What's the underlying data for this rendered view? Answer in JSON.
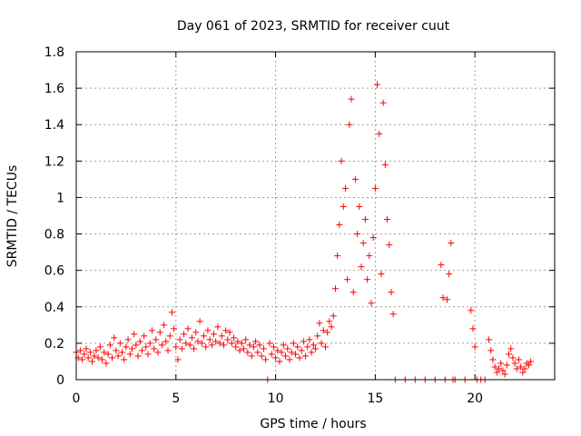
{
  "chart_data": {
    "type": "scatter",
    "title": "Day 061 of 2023, SRMTID for receiver cuut",
    "xlabel": "GPS time / hours",
    "ylabel": "SRMTID / TECUs",
    "xlim": [
      0,
      24
    ],
    "ylim": [
      0,
      1.8
    ],
    "xticks": [
      0,
      5,
      10,
      15,
      20
    ],
    "xtick_labels": [
      "0",
      "5",
      "10",
      "15",
      "20"
    ],
    "yticks": [
      0,
      0.2,
      0.4,
      0.6,
      0.8,
      1,
      1.2,
      1.4,
      1.6,
      1.8
    ],
    "ytick_labels": [
      "0",
      "0.2",
      "0.4",
      "0.6",
      "0.8",
      "1",
      "1.2",
      "1.4",
      "1.6",
      "1.8"
    ],
    "grid": true,
    "marker": "+",
    "color": "#ff0000",
    "series": [
      {
        "name": "SRMTID",
        "points": [
          [
            0.0,
            0.15
          ],
          [
            0.1,
            0.12
          ],
          [
            0.2,
            0.16
          ],
          [
            0.3,
            0.11
          ],
          [
            0.4,
            0.14
          ],
          [
            0.5,
            0.17
          ],
          [
            0.6,
            0.12
          ],
          [
            0.7,
            0.15
          ],
          [
            0.8,
            0.1
          ],
          [
            0.9,
            0.13
          ],
          [
            1.0,
            0.16
          ],
          [
            1.1,
            0.12
          ],
          [
            1.2,
            0.18
          ],
          [
            1.3,
            0.11
          ],
          [
            1.4,
            0.15
          ],
          [
            1.5,
            0.09
          ],
          [
            1.6,
            0.14
          ],
          [
            1.7,
            0.19
          ],
          [
            1.8,
            0.12
          ],
          [
            1.9,
            0.23
          ],
          [
            2.0,
            0.16
          ],
          [
            2.1,
            0.13
          ],
          [
            2.2,
            0.2
          ],
          [
            2.3,
            0.15
          ],
          [
            2.4,
            0.11
          ],
          [
            2.5,
            0.18
          ],
          [
            2.6,
            0.22
          ],
          [
            2.7,
            0.14
          ],
          [
            2.8,
            0.17
          ],
          [
            2.9,
            0.25
          ],
          [
            3.0,
            0.19
          ],
          [
            3.1,
            0.13
          ],
          [
            3.2,
            0.21
          ],
          [
            3.3,
            0.16
          ],
          [
            3.4,
            0.24
          ],
          [
            3.5,
            0.18
          ],
          [
            3.6,
            0.14
          ],
          [
            3.7,
            0.2
          ],
          [
            3.8,
            0.27
          ],
          [
            3.9,
            0.17
          ],
          [
            4.0,
            0.22
          ],
          [
            4.1,
            0.15
          ],
          [
            4.2,
            0.26
          ],
          [
            4.3,
            0.19
          ],
          [
            4.4,
            0.3
          ],
          [
            4.5,
            0.21
          ],
          [
            4.6,
            0.16
          ],
          [
            4.7,
            0.24
          ],
          [
            4.8,
            0.37
          ],
          [
            4.9,
            0.28
          ],
          [
            5.0,
            0.18
          ],
          [
            5.1,
            0.11
          ],
          [
            5.2,
            0.22
          ],
          [
            5.3,
            0.17
          ],
          [
            5.4,
            0.25
          ],
          [
            5.5,
            0.2
          ],
          [
            5.6,
            0.28
          ],
          [
            5.7,
            0.19
          ],
          [
            5.8,
            0.23
          ],
          [
            5.9,
            0.17
          ],
          [
            6.0,
            0.26
          ],
          [
            6.1,
            0.21
          ],
          [
            6.2,
            0.32
          ],
          [
            6.3,
            0.2
          ],
          [
            6.4,
            0.24
          ],
          [
            6.5,
            0.18
          ],
          [
            6.6,
            0.27
          ],
          [
            6.7,
            0.22
          ],
          [
            6.8,
            0.19
          ],
          [
            6.9,
            0.25
          ],
          [
            7.0,
            0.21
          ],
          [
            7.1,
            0.29
          ],
          [
            7.2,
            0.2
          ],
          [
            7.3,
            0.24
          ],
          [
            7.4,
            0.19
          ],
          [
            7.5,
            0.27
          ],
          [
            7.6,
            0.22
          ],
          [
            7.7,
            0.26
          ],
          [
            7.8,
            0.2
          ],
          [
            7.9,
            0.23
          ],
          [
            8.0,
            0.18
          ],
          [
            8.1,
            0.21
          ],
          [
            8.2,
            0.16
          ],
          [
            8.3,
            0.2
          ],
          [
            8.4,
            0.17
          ],
          [
            8.5,
            0.22
          ],
          [
            8.6,
            0.15
          ],
          [
            8.7,
            0.19
          ],
          [
            8.8,
            0.13
          ],
          [
            8.9,
            0.18
          ],
          [
            9.0,
            0.21
          ],
          [
            9.1,
            0.15
          ],
          [
            9.2,
            0.19
          ],
          [
            9.3,
            0.13
          ],
          [
            9.4,
            0.17
          ],
          [
            9.5,
            0.11
          ],
          [
            9.6,
            0.0
          ],
          [
            9.7,
            0.2
          ],
          [
            9.8,
            0.14
          ],
          [
            9.9,
            0.18
          ],
          [
            10.0,
            0.12
          ],
          [
            10.1,
            0.16
          ],
          [
            10.2,
            0.1
          ],
          [
            10.3,
            0.15
          ],
          [
            10.4,
            0.19
          ],
          [
            10.5,
            0.13
          ],
          [
            10.6,
            0.17
          ],
          [
            10.7,
            0.11
          ],
          [
            10.8,
            0.15
          ],
          [
            10.9,
            0.2
          ],
          [
            11.0,
            0.14
          ],
          [
            11.1,
            0.18
          ],
          [
            11.2,
            0.12
          ],
          [
            11.3,
            0.16
          ],
          [
            11.4,
            0.21
          ],
          [
            11.5,
            0.13
          ],
          [
            11.6,
            0.18
          ],
          [
            11.7,
            0.22
          ],
          [
            11.8,
            0.15
          ],
          [
            11.9,
            0.19
          ],
          [
            12.0,
            0.17
          ],
          [
            12.1,
            0.24
          ],
          [
            12.2,
            0.31
          ],
          [
            12.3,
            0.2
          ],
          [
            12.4,
            0.27
          ],
          [
            12.5,
            0.18
          ],
          [
            12.6,
            0.26
          ],
          [
            12.7,
            0.32
          ],
          [
            12.8,
            0.29
          ],
          [
            12.9,
            0.35
          ],
          [
            13.0,
            0.5
          ],
          [
            13.1,
            0.68
          ],
          [
            13.2,
            0.85
          ],
          [
            13.3,
            1.2
          ],
          [
            13.4,
            0.95
          ],
          [
            13.5,
            1.05
          ],
          [
            13.6,
            0.55
          ],
          [
            13.7,
            1.4
          ],
          [
            13.8,
            1.54
          ],
          [
            13.9,
            0.48
          ],
          [
            14.0,
            1.1
          ],
          [
            14.1,
            0.8
          ],
          [
            14.2,
            0.95
          ],
          [
            14.3,
            0.62
          ],
          [
            14.4,
            0.75
          ],
          [
            14.5,
            0.88
          ],
          [
            14.6,
            0.55
          ],
          [
            14.7,
            0.68
          ],
          [
            14.8,
            0.42
          ],
          [
            14.9,
            0.78
          ],
          [
            15.0,
            1.05
          ],
          [
            15.1,
            1.62
          ],
          [
            15.2,
            1.35
          ],
          [
            15.3,
            0.58
          ],
          [
            15.4,
            1.52
          ],
          [
            15.5,
            1.18
          ],
          [
            15.6,
            0.88
          ],
          [
            15.7,
            0.74
          ],
          [
            15.8,
            0.48
          ],
          [
            15.9,
            0.36
          ],
          [
            16.0,
            0.0
          ],
          [
            16.5,
            0.0
          ],
          [
            17.0,
            0.0
          ],
          [
            17.5,
            0.0
          ],
          [
            18.0,
            0.0
          ],
          [
            18.3,
            0.63
          ],
          [
            18.4,
            0.45
          ],
          [
            18.5,
            0.0
          ],
          [
            18.6,
            0.44
          ],
          [
            18.7,
            0.58
          ],
          [
            18.8,
            0.75
          ],
          [
            18.9,
            0.0
          ],
          [
            19.0,
            0.0
          ],
          [
            19.5,
            0.0
          ],
          [
            19.8,
            0.38
          ],
          [
            19.9,
            0.28
          ],
          [
            20.0,
            0.18
          ],
          [
            20.1,
            0.0
          ],
          [
            20.3,
            0.0
          ],
          [
            20.5,
            0.0
          ],
          [
            20.7,
            0.22
          ],
          [
            20.8,
            0.16
          ],
          [
            20.9,
            0.11
          ],
          [
            21.0,
            0.07
          ],
          [
            21.1,
            0.04
          ],
          [
            21.2,
            0.06
          ],
          [
            21.3,
            0.09
          ],
          [
            21.4,
            0.05
          ],
          [
            21.5,
            0.03
          ],
          [
            21.6,
            0.08
          ],
          [
            21.7,
            0.14
          ],
          [
            21.8,
            0.17
          ],
          [
            21.9,
            0.12
          ],
          [
            22.0,
            0.09
          ],
          [
            22.1,
            0.06
          ],
          [
            22.2,
            0.11
          ],
          [
            22.3,
            0.07
          ],
          [
            22.4,
            0.04
          ],
          [
            22.5,
            0.06
          ],
          [
            22.6,
            0.09
          ],
          [
            22.7,
            0.08
          ],
          [
            22.8,
            0.1
          ]
        ]
      }
    ]
  }
}
